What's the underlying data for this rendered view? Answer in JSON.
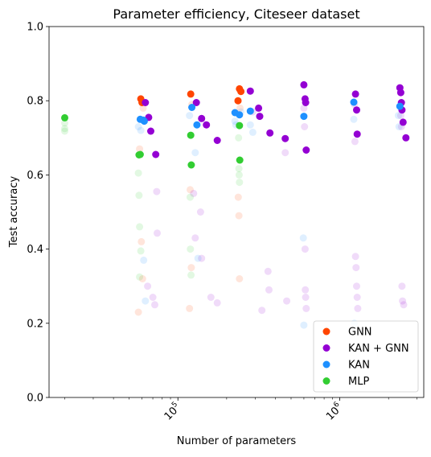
{
  "chart_data": {
    "type": "scatter",
    "title": "Parameter efficiency, Citeseer dataset",
    "xlabel": "Number of parameters",
    "ylabel": "Test accuracy",
    "xscale": "log",
    "xlim": [
      16000,
      3300000
    ],
    "ylim": [
      0.0,
      1.0
    ],
    "grid": false,
    "legend_position": "lower-right",
    "x_ticks": [
      {
        "value": 100000,
        "base": "10",
        "exp": "5"
      },
      {
        "value": 1000000,
        "base": "10",
        "exp": "6"
      }
    ],
    "y_ticks": [
      {
        "value": 0.0,
        "label": "0.0"
      },
      {
        "value": 0.2,
        "label": "0.2"
      },
      {
        "value": 0.4,
        "label": "0.4"
      },
      {
        "value": 0.6,
        "label": "0.6"
      },
      {
        "value": 0.8,
        "label": "0.8"
      },
      {
        "value": 1.0,
        "label": "1.0"
      }
    ],
    "series": [
      {
        "name": "GNN",
        "color": "#ff4500",
        "best": [
          [
            59000,
            0.805
          ],
          [
            60000,
            0.795
          ],
          [
            120000,
            0.818
          ],
          [
            240000,
            0.832
          ],
          [
            245000,
            0.825
          ],
          [
            235000,
            0.8
          ]
        ],
        "faded": [
          [
            58000,
            0.67
          ],
          [
            59500,
            0.42
          ],
          [
            60500,
            0.32
          ],
          [
            57000,
            0.23
          ],
          [
            119000,
            0.56
          ],
          [
            121000,
            0.35
          ],
          [
            118000,
            0.24
          ],
          [
            236000,
            0.54
          ],
          [
            238000,
            0.49
          ],
          [
            240000,
            0.32
          ],
          [
            242000,
            0.78
          ],
          [
            122000,
            0.79
          ],
          [
            61000,
            0.78
          ]
        ]
      },
      {
        "name": "KAN + GNN",
        "color": "#9400d3",
        "best": [
          [
            63000,
            0.795
          ],
          [
            66000,
            0.755
          ],
          [
            68000,
            0.718
          ],
          [
            73000,
            0.655
          ],
          [
            130000,
            0.795
          ],
          [
            140000,
            0.752
          ],
          [
            150000,
            0.735
          ],
          [
            175000,
            0.693
          ],
          [
            280000,
            0.826
          ],
          [
            315000,
            0.78
          ],
          [
            320000,
            0.758
          ],
          [
            370000,
            0.713
          ],
          [
            460000,
            0.698
          ],
          [
            600000,
            0.843
          ],
          [
            610000,
            0.805
          ],
          [
            615000,
            0.795
          ],
          [
            620000,
            0.667
          ],
          [
            1250000,
            0.818
          ],
          [
            1270000,
            0.775
          ],
          [
            1280000,
            0.71
          ],
          [
            2350000,
            0.835
          ],
          [
            2380000,
            0.822
          ],
          [
            2400000,
            0.795
          ],
          [
            2420000,
            0.775
          ],
          [
            2460000,
            0.742
          ],
          [
            2560000,
            0.7
          ]
        ],
        "faded": [
          [
            65000,
            0.3
          ],
          [
            70000,
            0.27
          ],
          [
            74000,
            0.555
          ],
          [
            74500,
            0.443
          ],
          [
            72000,
            0.25
          ],
          [
            125000,
            0.55
          ],
          [
            128000,
            0.43
          ],
          [
            138000,
            0.5
          ],
          [
            140000,
            0.375
          ],
          [
            160000,
            0.27
          ],
          [
            175000,
            0.255
          ],
          [
            290000,
            0.77
          ],
          [
            330000,
            0.235
          ],
          [
            360000,
            0.34
          ],
          [
            365000,
            0.29
          ],
          [
            460000,
            0.66
          ],
          [
            470000,
            0.26
          ],
          [
            600000,
            0.78
          ],
          [
            605000,
            0.73
          ],
          [
            610000,
            0.4
          ],
          [
            612000,
            0.29
          ],
          [
            615000,
            0.27
          ],
          [
            620000,
            0.24
          ],
          [
            1230000,
            0.79
          ],
          [
            1240000,
            0.69
          ],
          [
            1250000,
            0.38
          ],
          [
            1260000,
            0.35
          ],
          [
            1270000,
            0.3
          ],
          [
            1280000,
            0.27
          ],
          [
            1290000,
            0.24
          ],
          [
            2380000,
            0.76
          ],
          [
            2400000,
            0.73
          ],
          [
            2420000,
            0.3
          ],
          [
            2440000,
            0.26
          ],
          [
            2480000,
            0.25
          ]
        ]
      },
      {
        "name": "KAN",
        "color": "#1e90ff",
        "best": [
          [
            58500,
            0.75
          ],
          [
            61000,
            0.748
          ],
          [
            62000,
            0.745
          ],
          [
            122000,
            0.782
          ],
          [
            131000,
            0.735
          ],
          [
            225000,
            0.768
          ],
          [
            240000,
            0.762
          ],
          [
            280000,
            0.772
          ],
          [
            600000,
            0.758
          ],
          [
            1220000,
            0.796
          ],
          [
            2350000,
            0.785
          ]
        ],
        "faded": [
          [
            57000,
            0.73
          ],
          [
            59000,
            0.72
          ],
          [
            61500,
            0.37
          ],
          [
            63000,
            0.26
          ],
          [
            118000,
            0.76
          ],
          [
            128000,
            0.66
          ],
          [
            133000,
            0.375
          ],
          [
            225000,
            0.745
          ],
          [
            228000,
            0.735
          ],
          [
            245000,
            0.77
          ],
          [
            280000,
            0.735
          ],
          [
            290000,
            0.715
          ],
          [
            595000,
            0.43
          ],
          [
            600000,
            0.195
          ],
          [
            1220000,
            0.75
          ],
          [
            1230000,
            0.2
          ],
          [
            2300000,
            0.76
          ],
          [
            2320000,
            0.73
          ]
        ]
      },
      {
        "name": "MLP",
        "color": "#32cd32",
        "best": [
          [
            20000,
            0.754
          ],
          [
            57500,
            0.654
          ],
          [
            58500,
            0.655
          ],
          [
            120000,
            0.707
          ],
          [
            121000,
            0.627
          ],
          [
            240000,
            0.733
          ],
          [
            241000,
            0.64
          ]
        ],
        "faded": [
          [
            20000,
            0.74
          ],
          [
            20000,
            0.725
          ],
          [
            20000,
            0.718
          ],
          [
            57000,
            0.605
          ],
          [
            57500,
            0.545
          ],
          [
            58000,
            0.46
          ],
          [
            59000,
            0.395
          ],
          [
            58000,
            0.325
          ],
          [
            119000,
            0.54
          ],
          [
            119500,
            0.4
          ],
          [
            120500,
            0.33
          ],
          [
            237000,
            0.7
          ],
          [
            238000,
            0.617
          ],
          [
            239000,
            0.6
          ],
          [
            240000,
            0.58
          ]
        ]
      }
    ]
  }
}
